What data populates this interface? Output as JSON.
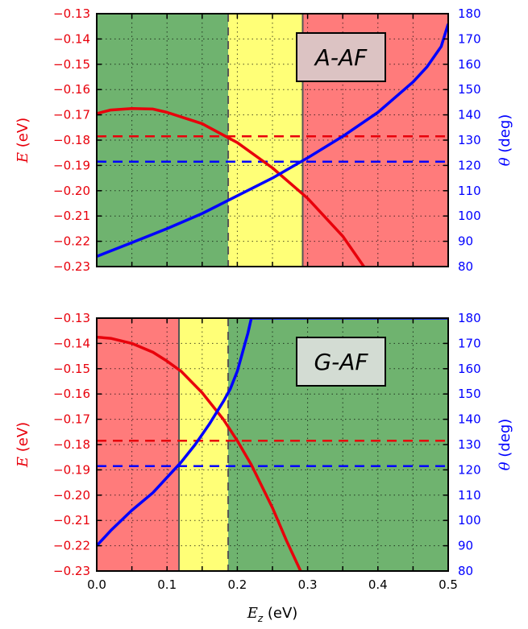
{
  "chart_data": [
    {
      "type": "line",
      "panel_label": "A-AF",
      "ylabel_left": "E (eV)",
      "ylabel_right": "θ (deg)",
      "xlim": [
        0.0,
        0.5
      ],
      "ylim_left": [
        -0.23,
        -0.13
      ],
      "ylim_right": [
        80,
        180
      ],
      "yticks_left": [
        "−0.13",
        "−0.14",
        "−0.15",
        "−0.16",
        "−0.17",
        "−0.18",
        "−0.19",
        "−0.20",
        "−0.21",
        "−0.22",
        "−0.23"
      ],
      "yticks_right": [
        "180",
        "170",
        "160",
        "150",
        "140",
        "130",
        "120",
        "110",
        "100",
        "90",
        "80"
      ],
      "grid": true,
      "regions": [
        {
          "x0": 0.0,
          "x1": 0.187,
          "color": "#6fb36f"
        },
        {
          "x0": 0.187,
          "x1": 0.293,
          "color": "#ffff77"
        },
        {
          "x0": 0.293,
          "x1": 0.5,
          "color": "#ff7b7b"
        }
      ],
      "vlines": [
        {
          "x": 0.187,
          "style": "dashed"
        },
        {
          "x": 0.293,
          "style": "solid"
        }
      ],
      "hlines": [
        {
          "axis": "left",
          "y": -0.1785,
          "color": "#e8000b"
        },
        {
          "axis": "left",
          "y": -0.1885,
          "color": "#0000ff"
        }
      ],
      "series": [
        {
          "axis": "left",
          "color": "#e8000b",
          "x": [
            0.0,
            0.02,
            0.05,
            0.08,
            0.1,
            0.15,
            0.2,
            0.25,
            0.3,
            0.35,
            0.38
          ],
          "y": [
            -0.1695,
            -0.1681,
            -0.1675,
            -0.1677,
            -0.169,
            -0.1735,
            -0.181,
            -0.191,
            -0.203,
            -0.218,
            -0.23
          ]
        },
        {
          "axis": "right",
          "color": "#0000ff",
          "x": [
            0.0,
            0.05,
            0.1,
            0.15,
            0.2,
            0.25,
            0.3,
            0.35,
            0.4,
            0.45,
            0.47,
            0.49,
            0.5
          ],
          "y": [
            84,
            89.5,
            95,
            101,
            108,
            115,
            123,
            131.5,
            141,
            153,
            159,
            167,
            176
          ]
        }
      ]
    },
    {
      "type": "line",
      "panel_label": "G-AF",
      "ylabel_left": "E (eV)",
      "ylabel_right": "θ (deg)",
      "xlabel": "E_z (eV)",
      "xlim": [
        0.0,
        0.5
      ],
      "ylim_left": [
        -0.23,
        -0.13
      ],
      "ylim_right": [
        80,
        180
      ],
      "xticks": [
        "0.0",
        "0.1",
        "0.2",
        "0.3",
        "0.4",
        "0.5"
      ],
      "yticks_left": [
        "−0.13",
        "−0.14",
        "−0.15",
        "−0.16",
        "−0.17",
        "−0.18",
        "−0.19",
        "−0.20",
        "−0.21",
        "−0.22",
        "−0.23"
      ],
      "yticks_right": [
        "180",
        "170",
        "160",
        "150",
        "140",
        "130",
        "120",
        "110",
        "100",
        "90",
        "80"
      ],
      "grid": true,
      "regions": [
        {
          "x0": 0.0,
          "x1": 0.117,
          "color": "#ff7b7b"
        },
        {
          "x0": 0.117,
          "x1": 0.187,
          "color": "#ffff77"
        },
        {
          "x0": 0.187,
          "x1": 0.5,
          "color": "#6fb36f"
        }
      ],
      "vlines": [
        {
          "x": 0.117,
          "style": "solid"
        },
        {
          "x": 0.187,
          "style": "dashed"
        }
      ],
      "hlines": [
        {
          "axis": "left",
          "y": -0.1785,
          "color": "#e8000b"
        },
        {
          "axis": "left",
          "y": -0.1885,
          "color": "#0000ff"
        }
      ],
      "series": [
        {
          "axis": "left",
          "color": "#e8000b",
          "x": [
            0.0,
            0.02,
            0.05,
            0.08,
            0.1,
            0.12,
            0.15,
            0.18,
            0.2,
            0.22,
            0.25,
            0.27,
            0.29
          ],
          "y": [
            -0.1375,
            -0.138,
            -0.14,
            -0.1435,
            -0.147,
            -0.151,
            -0.1595,
            -0.17,
            -0.1785,
            -0.188,
            -0.205,
            -0.218,
            -0.23
          ]
        },
        {
          "axis": "right",
          "color": "#0000ff",
          "x": [
            0.0,
            0.02,
            0.05,
            0.08,
            0.1,
            0.12,
            0.14,
            0.16,
            0.18,
            0.19,
            0.2,
            0.205,
            0.21,
            0.215,
            0.22,
            0.5
          ],
          "y": [
            90,
            96,
            104,
            111,
            117,
            123,
            130,
            138,
            147,
            152,
            159,
            164,
            169,
            174,
            180,
            180
          ]
        }
      ]
    }
  ]
}
